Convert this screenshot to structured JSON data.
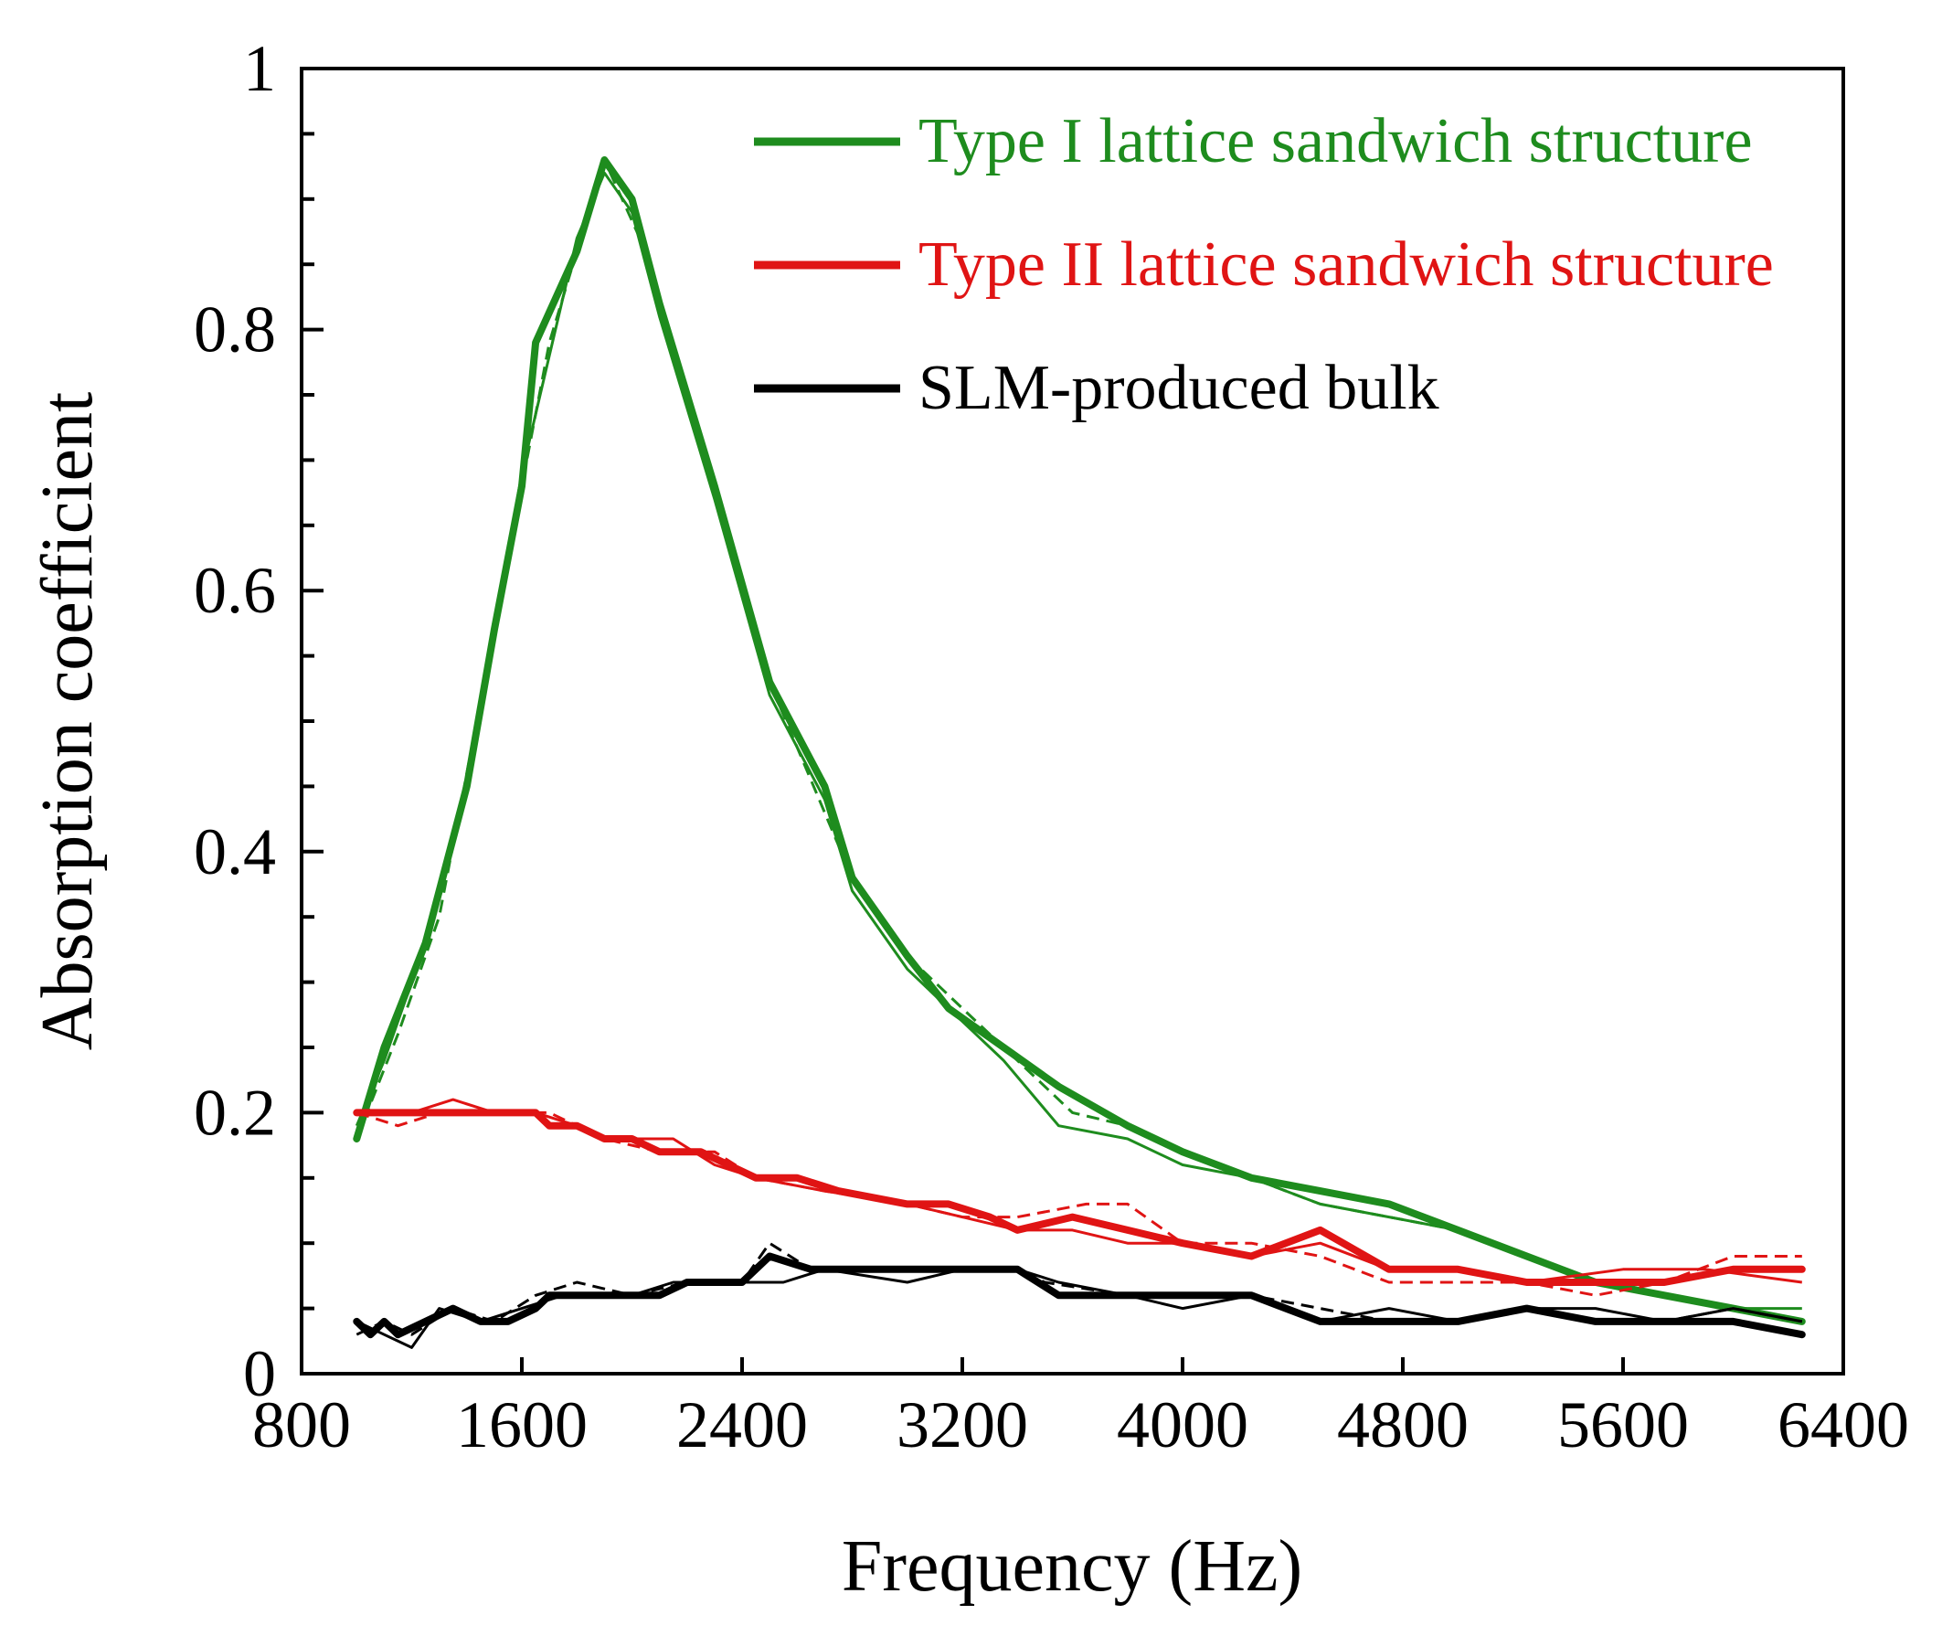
{
  "chart_data": {
    "type": "line",
    "xlabel": "Frequency (Hz)",
    "ylabel": "Absorption coefficient",
    "xlim": [
      800,
      6400
    ],
    "ylim": [
      0,
      1
    ],
    "x_ticks": [
      800,
      1600,
      2400,
      3200,
      4000,
      4800,
      5600,
      6400
    ],
    "x_tick_labels": [
      "800",
      "1600",
      "2400",
      "3200",
      "4000",
      "4800",
      "5600",
      "6400"
    ],
    "y_ticks": [
      0,
      0.2,
      0.4,
      0.6,
      0.8,
      1
    ],
    "y_tick_labels": [
      "0",
      "0.2",
      "0.4",
      "0.6",
      "0.8",
      "1"
    ],
    "y_minor_step": 0.05,
    "grid": false,
    "legend_position": "top-right",
    "series": [
      {
        "name": "Type I lattice sandwich structure",
        "color": "#1e8c1e",
        "points": [
          [
            1000,
            0.18
          ],
          [
            1100,
            0.25
          ],
          [
            1250,
            0.33
          ],
          [
            1400,
            0.45
          ],
          [
            1500,
            0.57
          ],
          [
            1600,
            0.68
          ],
          [
            1650,
            0.79
          ],
          [
            1800,
            0.86
          ],
          [
            1900,
            0.93
          ],
          [
            2000,
            0.9
          ],
          [
            2100,
            0.82
          ],
          [
            2300,
            0.68
          ],
          [
            2500,
            0.53
          ],
          [
            2700,
            0.45
          ],
          [
            2800,
            0.38
          ],
          [
            3000,
            0.32
          ],
          [
            3150,
            0.28
          ],
          [
            3350,
            0.25
          ],
          [
            3550,
            0.22
          ],
          [
            3800,
            0.19
          ],
          [
            4000,
            0.17
          ],
          [
            4250,
            0.15
          ],
          [
            4500,
            0.14
          ],
          [
            4750,
            0.13
          ],
          [
            5000,
            0.11
          ],
          [
            5250,
            0.09
          ],
          [
            5500,
            0.07
          ],
          [
            5750,
            0.06
          ],
          [
            6000,
            0.05
          ],
          [
            6250,
            0.04
          ]
        ],
        "repeats": [
          {
            "style": "thin",
            "points": [
              [
                1000,
                0.19
              ],
              [
                1100,
                0.24
              ],
              [
                1250,
                0.33
              ],
              [
                1400,
                0.45
              ],
              [
                1500,
                0.57
              ],
              [
                1600,
                0.69
              ],
              [
                1700,
                0.78
              ],
              [
                1800,
                0.87
              ],
              [
                1900,
                0.92
              ],
              [
                2000,
                0.89
              ],
              [
                2100,
                0.81
              ],
              [
                2300,
                0.67
              ],
              [
                2500,
                0.52
              ],
              [
                2700,
                0.44
              ],
              [
                2800,
                0.37
              ],
              [
                3000,
                0.31
              ],
              [
                3150,
                0.28
              ],
              [
                3350,
                0.24
              ],
              [
                3550,
                0.19
              ],
              [
                3800,
                0.18
              ],
              [
                4000,
                0.16
              ],
              [
                4250,
                0.15
              ],
              [
                4500,
                0.13
              ],
              [
                4750,
                0.12
              ],
              [
                5000,
                0.11
              ],
              [
                5250,
                0.09
              ],
              [
                5500,
                0.07
              ],
              [
                5750,
                0.06
              ],
              [
                6000,
                0.05
              ],
              [
                6250,
                0.05
              ]
            ]
          },
          {
            "style": "dashed",
            "points": [
              [
                1000,
                0.18
              ],
              [
                1150,
                0.26
              ],
              [
                1300,
                0.35
              ],
              [
                1500,
                0.57
              ],
              [
                1700,
                0.79
              ],
              [
                1900,
                0.93
              ],
              [
                2050,
                0.86
              ],
              [
                2300,
                0.68
              ],
              [
                2500,
                0.53
              ],
              [
                2800,
                0.38
              ],
              [
                3000,
                0.32
              ],
              [
                3200,
                0.28
              ],
              [
                3400,
                0.24
              ],
              [
                3600,
                0.2
              ],
              [
                3800,
                0.19
              ],
              [
                4000,
                0.17
              ],
              [
                4250,
                0.15
              ],
              [
                4500,
                0.13
              ],
              [
                4750,
                0.12
              ],
              [
                5000,
                0.11
              ],
              [
                5250,
                0.09
              ],
              [
                5500,
                0.07
              ],
              [
                5750,
                0.06
              ],
              [
                6000,
                0.05
              ],
              [
                6250,
                0.04
              ]
            ]
          }
        ]
      },
      {
        "name": "Type II lattice sandwich structure",
        "color": "#e01414",
        "points": [
          [
            1000,
            0.2
          ],
          [
            1200,
            0.2
          ],
          [
            1400,
            0.2
          ],
          [
            1650,
            0.2
          ],
          [
            1700,
            0.19
          ],
          [
            1800,
            0.19
          ],
          [
            1900,
            0.18
          ],
          [
            2000,
            0.18
          ],
          [
            2100,
            0.17
          ],
          [
            2250,
            0.17
          ],
          [
            2450,
            0.15
          ],
          [
            2600,
            0.15
          ],
          [
            2750,
            0.14
          ],
          [
            3000,
            0.13
          ],
          [
            3150,
            0.13
          ],
          [
            3300,
            0.12
          ],
          [
            3400,
            0.11
          ],
          [
            3600,
            0.12
          ],
          [
            3800,
            0.11
          ],
          [
            4000,
            0.1
          ],
          [
            4250,
            0.09
          ],
          [
            4500,
            0.11
          ],
          [
            4750,
            0.08
          ],
          [
            5000,
            0.08
          ],
          [
            5250,
            0.07
          ],
          [
            5500,
            0.07
          ],
          [
            5750,
            0.07
          ],
          [
            6000,
            0.08
          ],
          [
            6250,
            0.08
          ]
        ],
        "repeats": [
          {
            "style": "thin",
            "points": [
              [
                1000,
                0.2
              ],
              [
                1200,
                0.2
              ],
              [
                1350,
                0.21
              ],
              [
                1500,
                0.2
              ],
              [
                1650,
                0.2
              ],
              [
                1800,
                0.19
              ],
              [
                1900,
                0.18
              ],
              [
                2000,
                0.18
              ],
              [
                2150,
                0.18
              ],
              [
                2300,
                0.16
              ],
              [
                2450,
                0.15
              ],
              [
                2700,
                0.14
              ],
              [
                3000,
                0.13
              ],
              [
                3200,
                0.12
              ],
              [
                3400,
                0.11
              ],
              [
                3600,
                0.11
              ],
              [
                3800,
                0.1
              ],
              [
                4000,
                0.1
              ],
              [
                4250,
                0.09
              ],
              [
                4500,
                0.1
              ],
              [
                4750,
                0.08
              ],
              [
                5000,
                0.08
              ],
              [
                5250,
                0.07
              ],
              [
                5600,
                0.08
              ],
              [
                5900,
                0.08
              ],
              [
                6250,
                0.07
              ]
            ]
          },
          {
            "style": "dashed",
            "points": [
              [
                1000,
                0.2
              ],
              [
                1150,
                0.19
              ],
              [
                1300,
                0.2
              ],
              [
                1500,
                0.2
              ],
              [
                1700,
                0.2
              ],
              [
                1900,
                0.18
              ],
              [
                2100,
                0.17
              ],
              [
                2300,
                0.17
              ],
              [
                2450,
                0.15
              ],
              [
                2700,
                0.14
              ],
              [
                3000,
                0.13
              ],
              [
                3200,
                0.12
              ],
              [
                3400,
                0.12
              ],
              [
                3650,
                0.13
              ],
              [
                3800,
                0.13
              ],
              [
                4000,
                0.1
              ],
              [
                4250,
                0.1
              ],
              [
                4500,
                0.09
              ],
              [
                4750,
                0.07
              ],
              [
                5000,
                0.07
              ],
              [
                5250,
                0.07
              ],
              [
                5500,
                0.06
              ],
              [
                5750,
                0.07
              ],
              [
                6000,
                0.09
              ],
              [
                6250,
                0.09
              ]
            ]
          }
        ]
      },
      {
        "name": "SLM-produced bulk",
        "color": "#000000",
        "points": [
          [
            1000,
            0.04
          ],
          [
            1050,
            0.03
          ],
          [
            1100,
            0.04
          ],
          [
            1150,
            0.03
          ],
          [
            1250,
            0.04
          ],
          [
            1350,
            0.05
          ],
          [
            1450,
            0.04
          ],
          [
            1550,
            0.04
          ],
          [
            1650,
            0.05
          ],
          [
            1700,
            0.06
          ],
          [
            1900,
            0.06
          ],
          [
            2100,
            0.06
          ],
          [
            2200,
            0.07
          ],
          [
            2400,
            0.07
          ],
          [
            2500,
            0.09
          ],
          [
            2650,
            0.08
          ],
          [
            2800,
            0.08
          ],
          [
            3000,
            0.08
          ],
          [
            3200,
            0.08
          ],
          [
            3400,
            0.08
          ],
          [
            3550,
            0.06
          ],
          [
            3800,
            0.06
          ],
          [
            4000,
            0.06
          ],
          [
            4250,
            0.06
          ],
          [
            4500,
            0.04
          ],
          [
            4750,
            0.04
          ],
          [
            5000,
            0.04
          ],
          [
            5250,
            0.05
          ],
          [
            5500,
            0.04
          ],
          [
            5750,
            0.04
          ],
          [
            6000,
            0.04
          ],
          [
            6250,
            0.03
          ]
        ],
        "repeats": [
          {
            "style": "thin",
            "points": [
              [
                1000,
                0.04
              ],
              [
                1100,
                0.03
              ],
              [
                1200,
                0.02
              ],
              [
                1300,
                0.05
              ],
              [
                1450,
                0.04
              ],
              [
                1600,
                0.05
              ],
              [
                1750,
                0.06
              ],
              [
                2000,
                0.06
              ],
              [
                2150,
                0.07
              ],
              [
                2400,
                0.07
              ],
              [
                2550,
                0.07
              ],
              [
                2700,
                0.08
              ],
              [
                3000,
                0.07
              ],
              [
                3200,
                0.08
              ],
              [
                3400,
                0.08
              ],
              [
                3550,
                0.07
              ],
              [
                3800,
                0.06
              ],
              [
                4000,
                0.05
              ],
              [
                4250,
                0.06
              ],
              [
                4500,
                0.04
              ],
              [
                4750,
                0.05
              ],
              [
                5000,
                0.04
              ],
              [
                5250,
                0.05
              ],
              [
                5500,
                0.05
              ],
              [
                5750,
                0.04
              ],
              [
                6000,
                0.05
              ],
              [
                6250,
                0.04
              ]
            ]
          },
          {
            "style": "dashed",
            "points": [
              [
                1000,
                0.03
              ],
              [
                1100,
                0.04
              ],
              [
                1200,
                0.03
              ],
              [
                1350,
                0.05
              ],
              [
                1500,
                0.04
              ],
              [
                1650,
                0.06
              ],
              [
                1800,
                0.07
              ],
              [
                2000,
                0.06
              ],
              [
                2200,
                0.07
              ],
              [
                2400,
                0.07
              ],
              [
                2500,
                0.1
              ],
              [
                2650,
                0.08
              ],
              [
                2900,
                0.08
              ],
              [
                3200,
                0.08
              ],
              [
                3400,
                0.08
              ],
              [
                3500,
                0.07
              ],
              [
                3800,
                0.06
              ],
              [
                4000,
                0.06
              ],
              [
                4250,
                0.06
              ],
              [
                4500,
                0.05
              ],
              [
                4750,
                0.04
              ],
              [
                5000,
                0.04
              ],
              [
                5250,
                0.05
              ],
              [
                5500,
                0.04
              ],
              [
                5750,
                0.04
              ],
              [
                6000,
                0.05
              ],
              [
                6250,
                0.04
              ]
            ]
          }
        ]
      }
    ]
  }
}
